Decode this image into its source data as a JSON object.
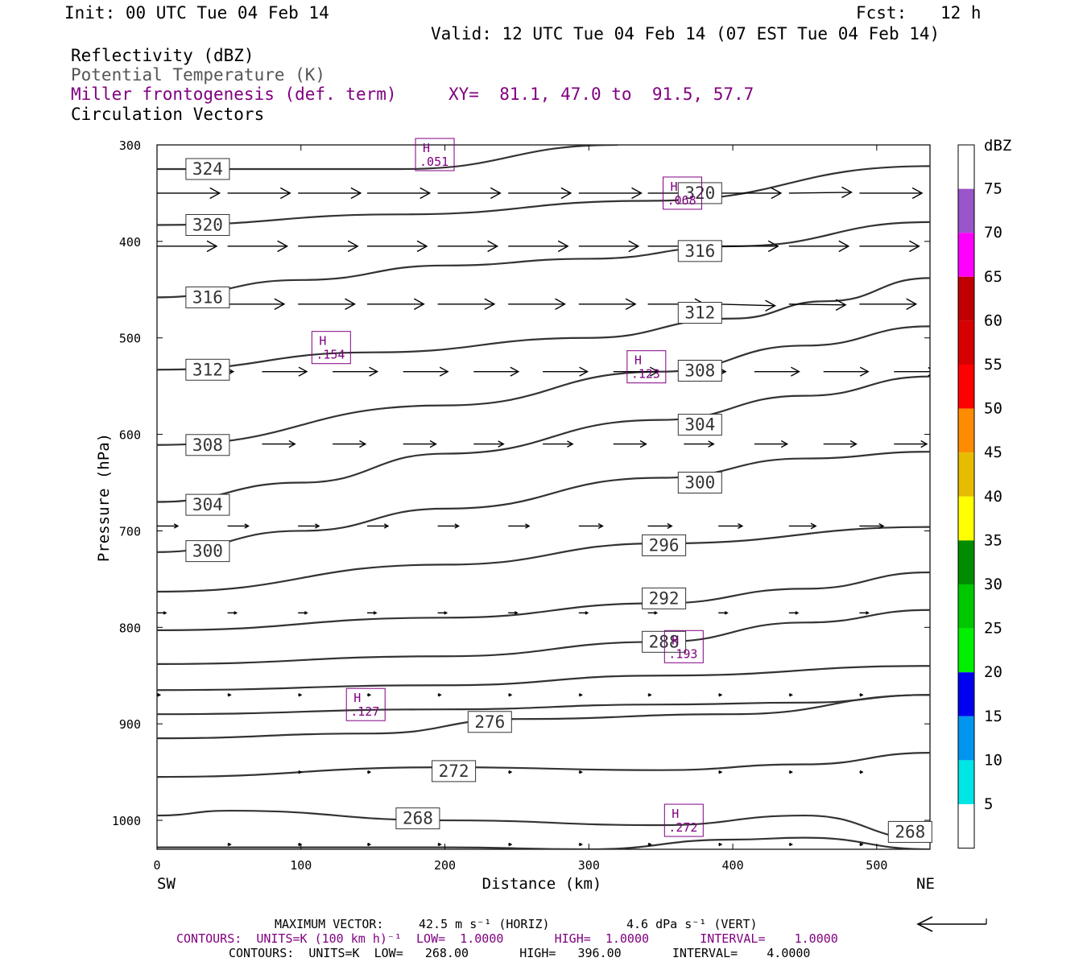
{
  "header": {
    "init": "Init: 00 UTC Tue 04 Feb 14",
    "fcst_label": "Fcst:",
    "fcst_value": "12 h",
    "valid": "Valid: 12 UTC Tue 04 Feb 14 (07 EST Tue 04 Feb 14)",
    "line1": "Reflectivity (dBZ)",
    "line2": "Potential Temperature (K)",
    "line3": "Miller frontogenesis (def. term)",
    "xy": "XY=  81.1, 47.0 to  91.5, 57.7",
    "line4": "Circulation Vectors"
  },
  "footer": {
    "max_vector_label": "MAXIMUM VECTOR:",
    "max_vector_horiz": "42.5 m s⁻¹ (HORIZ)",
    "max_vector_vert": "4.6 dPa s⁻¹ (VERT)",
    "contours_fronto": "CONTOURS:  UNITS=K (100 km h)⁻¹  LOW=  1.0000       HIGH=  1.0000       INTERVAL=    1.0000",
    "contours_theta": "CONTOURS:  UNITS=K  LOW=   268.00       HIGH=   396.00       INTERVAL=    4.0000"
  },
  "colors": {
    "purple": "#800080",
    "contour": "#333333",
    "frame": "#000000"
  },
  "colorbar": {
    "unit": "dBZ",
    "labels": [
      "5",
      "10",
      "15",
      "20",
      "25",
      "30",
      "35",
      "40",
      "45",
      "50",
      "55",
      "60",
      "65",
      "70",
      "75"
    ],
    "bins": [
      {
        "color": "#ffffff"
      },
      {
        "color": "#00e5e5"
      },
      {
        "color": "#0096f0"
      },
      {
        "color": "#0000f0"
      },
      {
        "color": "#00f000"
      },
      {
        "color": "#00c800"
      },
      {
        "color": "#008c00"
      },
      {
        "color": "#ffff00"
      },
      {
        "color": "#e6bc00"
      },
      {
        "color": "#ff8c00"
      },
      {
        "color": "#ff0000"
      },
      {
        "color": "#d70000"
      },
      {
        "color": "#c00000"
      },
      {
        "color": "#ff00ff"
      },
      {
        "color": "#9955c9"
      },
      {
        "color": "#ffffff"
      }
    ]
  },
  "chart_data": {
    "type": "cross-section",
    "xlabel": "Distance (km)",
    "ylabel": "Pressure (hPa)",
    "xlim": [
      0,
      537
    ],
    "ylim": [
      1030,
      300
    ],
    "x_ticks": [
      0,
      100,
      200,
      300,
      400,
      500
    ],
    "y_ticks": [
      300,
      400,
      500,
      600,
      700,
      800,
      900,
      1000
    ],
    "x_end_labels": {
      "left": "SW",
      "right": "NE"
    },
    "theta_contours": [
      {
        "label": "324",
        "points": [
          [
            0,
            325
          ],
          [
            170,
            325
          ],
          [
            320,
            300
          ]
        ]
      },
      {
        "label": "320",
        "points": [
          [
            0,
            383
          ],
          [
            170,
            372
          ],
          [
            340,
            358
          ],
          [
            537,
            322
          ]
        ]
      },
      {
        "label": "316",
        "points": [
          [
            0,
            458
          ],
          [
            100,
            440
          ],
          [
            200,
            425
          ],
          [
            300,
            418
          ],
          [
            400,
            405
          ],
          [
            537,
            380
          ]
        ]
      },
      {
        "label": "312",
        "points": [
          [
            0,
            533
          ],
          [
            150,
            515
          ],
          [
            300,
            500
          ],
          [
            400,
            480
          ],
          [
            465,
            462
          ],
          [
            537,
            438
          ]
        ]
      },
      {
        "label": "308",
        "points": [
          [
            0,
            611
          ],
          [
            200,
            570
          ],
          [
            350,
            535
          ],
          [
            450,
            508
          ],
          [
            537,
            488
          ]
        ]
      },
      {
        "label": "304",
        "points": [
          [
            0,
            670
          ],
          [
            100,
            650
          ],
          [
            200,
            620
          ],
          [
            350,
            585
          ],
          [
            450,
            560
          ],
          [
            537,
            540
          ]
        ]
      },
      {
        "label": "300",
        "points": [
          [
            0,
            722
          ],
          [
            100,
            700
          ],
          [
            200,
            677
          ],
          [
            350,
            645
          ],
          [
            450,
            625
          ],
          [
            537,
            618
          ]
        ]
      },
      {
        "label": "296",
        "points": [
          [
            0,
            763
          ],
          [
            200,
            735
          ],
          [
            350,
            713
          ],
          [
            537,
            696
          ]
        ]
      },
      {
        "label": "292",
        "points": [
          [
            0,
            803
          ],
          [
            200,
            790
          ],
          [
            350,
            775
          ],
          [
            450,
            760
          ],
          [
            537,
            743
          ]
        ]
      },
      {
        "label": "288",
        "points": [
          [
            0,
            838
          ],
          [
            200,
            830
          ],
          [
            350,
            815
          ],
          [
            450,
            795
          ],
          [
            537,
            782
          ]
        ]
      },
      {
        "label": "",
        "points": [
          [
            0,
            865
          ],
          [
            200,
            860
          ],
          [
            350,
            850
          ],
          [
            537,
            840
          ]
        ]
      },
      {
        "label": "",
        "points": [
          [
            0,
            890
          ],
          [
            200,
            885
          ],
          [
            350,
            880
          ],
          [
            450,
            878
          ],
          [
            537,
            870
          ]
        ]
      },
      {
        "label": "276",
        "points": [
          [
            0,
            915
          ],
          [
            150,
            910
          ],
          [
            250,
            895
          ],
          [
            400,
            890
          ],
          [
            537,
            870
          ]
        ]
      },
      {
        "label": "272",
        "points": [
          [
            0,
            955
          ],
          [
            200,
            945
          ],
          [
            350,
            948
          ],
          [
            450,
            942
          ],
          [
            537,
            930
          ]
        ]
      },
      {
        "label": "268",
        "points": [
          [
            0,
            995
          ],
          [
            50,
            990
          ],
          [
            200,
            1000
          ],
          [
            350,
            1005
          ],
          [
            450,
            995
          ],
          [
            537,
            1020
          ]
        ]
      },
      {
        "label": "268",
        "points": [
          [
            0,
            1028
          ],
          [
            200,
            1028
          ],
          [
            300,
            1030
          ],
          [
            400,
            1020
          ],
          [
            450,
            1018
          ],
          [
            537,
            1030
          ]
        ]
      }
    ],
    "theta_labels": [
      {
        "text": "324",
        "x": 24,
        "p": 325
      },
      {
        "text": "320",
        "x": 24,
        "p": 383
      },
      {
        "text": "316",
        "x": 24,
        "p": 458
      },
      {
        "text": "312",
        "x": 24,
        "p": 533
      },
      {
        "text": "308",
        "x": 24,
        "p": 611
      },
      {
        "text": "304",
        "x": 24,
        "p": 673
      },
      {
        "text": "300",
        "x": 24,
        "p": 721
      },
      {
        "text": "320",
        "x": 366,
        "p": 350
      },
      {
        "text": "316",
        "x": 366,
        "p": 410
      },
      {
        "text": "312",
        "x": 366,
        "p": 474
      },
      {
        "text": "308",
        "x": 366,
        "p": 534
      },
      {
        "text": "304",
        "x": 366,
        "p": 590
      },
      {
        "text": "300",
        "x": 366,
        "p": 650
      },
      {
        "text": "296",
        "x": 341,
        "p": 715
      },
      {
        "text": "292",
        "x": 341,
        "p": 770
      },
      {
        "text": "288",
        "x": 341,
        "p": 815
      },
      {
        "text": "276",
        "x": 220,
        "p": 898
      },
      {
        "text": "272",
        "x": 195,
        "p": 949
      },
      {
        "text": "268",
        "x": 170,
        "p": 998
      },
      {
        "text": "268",
        "x": 512,
        "p": 1012
      }
    ],
    "frontogenesis_maxima": [
      {
        "label": "H",
        "value": ".051",
        "x": 193,
        "p": 310
      },
      {
        "label": "H",
        "value": ".068",
        "x": 365,
        "p": 350
      },
      {
        "label": "H",
        "value": ".154",
        "x": 121,
        "p": 510
      },
      {
        "label": "H",
        "value": ".123",
        "x": 340,
        "p": 530
      },
      {
        "label": "H",
        "value": ".193",
        "x": 366,
        "p": 820
      },
      {
        "label": "H",
        "value": ".127",
        "x": 145,
        "p": 880
      },
      {
        "label": "H",
        "value": ".272",
        "x": 366,
        "p": 1000
      }
    ],
    "vectors": [
      {
        "p": 350,
        "x": [
          0,
          49,
          98,
          146,
          195,
          244,
          293,
          341,
          390,
          439,
          488,
          537
        ],
        "u": [
          42,
          42,
          42,
          42,
          42,
          42,
          42,
          42,
          42,
          42,
          42,
          42
        ],
        "w": [
          0,
          0,
          0,
          0,
          0,
          0,
          0,
          0,
          0,
          -0.5,
          0,
          0
        ]
      },
      {
        "p": 405,
        "x": [
          0,
          49,
          98,
          146,
          195,
          244,
          293,
          341,
          390,
          439,
          488,
          537
        ],
        "u": [
          40,
          40,
          40,
          40,
          40,
          40,
          40,
          40,
          40,
          40,
          40,
          40
        ],
        "w": [
          0,
          0,
          0,
          0,
          0,
          0,
          0,
          0,
          0,
          0,
          0,
          0
        ]
      },
      {
        "p": 465,
        "x": [
          49,
          98,
          146,
          195,
          244,
          293,
          341,
          390,
          439,
          488,
          537
        ],
        "u": [
          38,
          38,
          38,
          38,
          38,
          38,
          38,
          38,
          38,
          38,
          38
        ],
        "w": [
          0,
          0,
          0,
          0,
          0,
          0,
          0,
          1,
          0.5,
          0,
          0
        ]
      },
      {
        "p": 535,
        "x": [
          24,
          73,
          122,
          171,
          220,
          268,
          317,
          366,
          415,
          463,
          512
        ],
        "u": [
          28,
          30,
          30,
          30,
          30,
          30,
          30,
          28,
          30,
          30,
          28
        ],
        "w": [
          0,
          0,
          0,
          0,
          0,
          0,
          0,
          0,
          0,
          0,
          0
        ]
      },
      {
        "p": 610,
        "x": [
          24,
          73,
          122,
          171,
          220,
          268,
          317,
          366,
          415,
          463,
          512
        ],
        "u": [
          20,
          22,
          22,
          22,
          20,
          20,
          22,
          20,
          22,
          22,
          22
        ],
        "w": [
          0,
          0,
          0,
          0,
          0,
          0,
          0,
          0,
          0,
          0,
          0
        ]
      },
      {
        "p": 695,
        "x": [
          0,
          49,
          98,
          146,
          195,
          244,
          293,
          341,
          390,
          439,
          488
        ],
        "u": [
          14,
          14,
          14,
          14,
          14,
          14,
          16,
          16,
          16,
          18,
          16
        ],
        "w": [
          0,
          0,
          0,
          0,
          0,
          0,
          0,
          0,
          0,
          0,
          0
        ]
      },
      {
        "p": 785,
        "x": [
          0,
          49,
          98,
          146,
          195,
          244,
          293,
          341,
          390,
          439,
          488
        ],
        "u": [
          6,
          6,
          6,
          6,
          6,
          6,
          6,
          6,
          6,
          6,
          6
        ],
        "w": [
          0,
          0,
          0,
          0,
          0,
          0,
          0,
          0,
          0,
          0,
          0
        ]
      },
      {
        "p": 870,
        "x": [
          0,
          49,
          98,
          146,
          195,
          244,
          293,
          341,
          390,
          439,
          488
        ],
        "u": [
          2,
          2,
          2,
          2,
          2,
          2,
          2,
          2,
          2,
          2,
          2
        ],
        "w": [
          0,
          0,
          0,
          0,
          0,
          0,
          0,
          0,
          0,
          0,
          0
        ]
      },
      {
        "p": 950,
        "x": [
          98,
          146,
          195,
          244,
          293,
          390,
          439,
          488
        ],
        "u": [
          2,
          2,
          2,
          2,
          2,
          2,
          2,
          2
        ],
        "w": [
          0,
          0,
          0,
          0,
          0,
          0,
          0,
          0
        ]
      },
      {
        "p": 1025,
        "x": [
          49,
          98,
          146,
          195,
          244,
          293,
          341,
          390,
          439,
          488
        ],
        "u": [
          2,
          2,
          2,
          2,
          2,
          2,
          2,
          2,
          2,
          2
        ],
        "w": [
          0,
          0,
          0,
          0,
          0,
          0,
          0,
          0,
          0,
          0
        ]
      }
    ]
  }
}
